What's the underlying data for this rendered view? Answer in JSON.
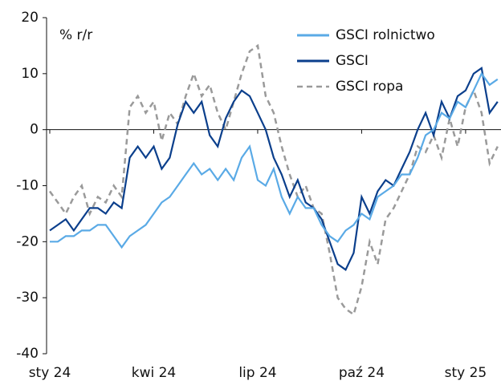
{
  "chart_data": {
    "type": "line",
    "annotation": "% r/r",
    "categories": [
      "sty 24",
      null,
      null,
      null,
      null,
      null,
      null,
      null,
      null,
      null,
      null,
      null,
      null,
      "kwi 24",
      null,
      null,
      null,
      null,
      null,
      null,
      null,
      null,
      null,
      null,
      null,
      null,
      "lip 24",
      null,
      null,
      null,
      null,
      null,
      null,
      null,
      null,
      null,
      null,
      null,
      null,
      "paź 24",
      null,
      null,
      null,
      null,
      null,
      null,
      null,
      null,
      null,
      null,
      null,
      null,
      "sty 25",
      null,
      null,
      null,
      null
    ],
    "series": [
      {
        "name": "GSCI rolnictwo",
        "color": "#5aaae6",
        "dashed": false,
        "values": [
          -20,
          -20,
          -19,
          -19,
          -18,
          -18,
          -17,
          -17,
          -19,
          -21,
          -19,
          -18,
          -17,
          -15,
          -13,
          -12,
          -10,
          -8,
          -6,
          -8,
          -7,
          -9,
          -7,
          -9,
          -5,
          -3,
          -9,
          -10,
          -7,
          -12,
          -15,
          -12,
          -14,
          -14,
          -17,
          -19,
          -20,
          -18,
          -17,
          -15,
          -16,
          -12,
          -11,
          -10,
          -8,
          -8,
          -5,
          -1,
          0,
          3,
          2,
          5,
          4,
          7,
          10,
          8,
          9
        ]
      },
      {
        "name": "GSCI",
        "color": "#0b3f8c",
        "dashed": false,
        "values": [
          -18,
          -17,
          -16,
          -18,
          -16,
          -14,
          -14,
          -15,
          -13,
          -14,
          -5,
          -3,
          -5,
          -3,
          -7,
          -5,
          1,
          5,
          3,
          5,
          -1,
          -3,
          2,
          5,
          7,
          6,
          3,
          0,
          -5,
          -8,
          -12,
          -9,
          -13,
          -14,
          -16,
          -20,
          -24,
          -25,
          -22,
          -12,
          -15,
          -11,
          -9,
          -10,
          -7,
          -4,
          0,
          3,
          -1,
          5,
          2,
          6,
          7,
          10,
          11,
          3,
          5
        ]
      },
      {
        "name": "GSCI ropa",
        "color": "#9a9a9a",
        "dashed": true,
        "values": [
          -11,
          -13,
          -15,
          -12,
          -10,
          -15,
          -12,
          -13,
          -10,
          -12,
          4,
          6,
          3,
          5,
          -2,
          3,
          1,
          6,
          10,
          6,
          8,
          3,
          0,
          5,
          10,
          14,
          15,
          6,
          3,
          -3,
          -8,
          -12,
          -10,
          -14,
          -15,
          -22,
          -30,
          -32,
          -33,
          -28,
          -20,
          -24,
          -16,
          -14,
          -11,
          -8,
          -3,
          -4,
          -1,
          -5,
          2,
          -3,
          4,
          7,
          3,
          -6,
          -3
        ]
      }
    ],
    "ylim": [
      -40,
      20
    ],
    "yticks": [
      -40,
      -30,
      -20,
      -10,
      0,
      10,
      20
    ],
    "grid": false
  }
}
